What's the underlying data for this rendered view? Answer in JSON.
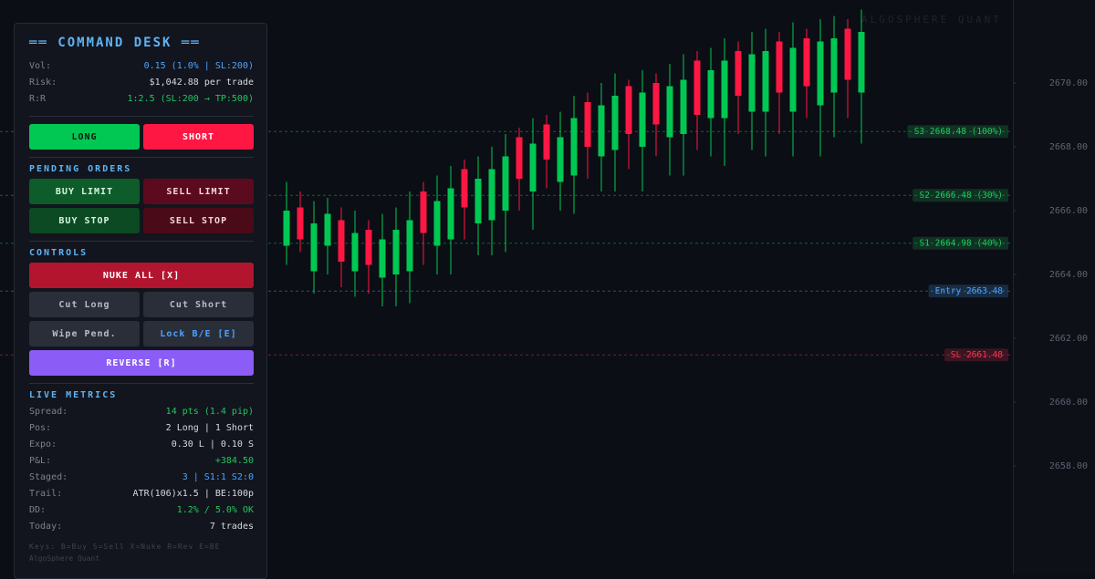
{
  "panel": {
    "title": "══ COMMAND DESK ══",
    "summary": [
      {
        "label": "Vol:",
        "value": "0.15 (1.0% | SL:200)"
      },
      {
        "label": "Risk:",
        "value": "$1,042.88 per trade"
      },
      {
        "label": "R:R",
        "value": "1:2.5 (SL:200 → TP:500)"
      }
    ],
    "trade_buttons": [
      "LONG",
      "SHORT"
    ],
    "pending": {
      "title": "PENDING ORDERS",
      "buttons": [
        "BUY LIMIT",
        "SELL LIMIT",
        "BUY STOP",
        "SELL STOP"
      ]
    },
    "controls": {
      "title": "CONTROLS",
      "buttons": [
        "NUKE ALL [X]",
        "Cut Long",
        "Cut Short",
        "Wipe Pend.",
        "Lock B/E [E]",
        "REVERSE [R]"
      ]
    },
    "metrics": {
      "title": "LIVE METRICS",
      "rows": [
        {
          "label": "Spread:",
          "value": "14 pts (1.4 pip)"
        },
        {
          "label": "Pos:",
          "value": "2 Long | 1 Short"
        },
        {
          "label": "Expo:",
          "value": "0.30 L | 0.10 S"
        },
        {
          "label": "P&L:",
          "value": "+384.50"
        },
        {
          "label": "Staged:",
          "value": "3 | S1:1 S2:0"
        },
        {
          "label": "Trail:",
          "value": "ATR(106)x1.5 | BE:100p"
        },
        {
          "label": "DD:",
          "value": "1.2% / 5.0% OK"
        },
        {
          "label": "Today:",
          "value": "7 trades"
        }
      ]
    },
    "keys": "Keys: B=Buy S=Sell X=Nuke R=Rev E=BE",
    "brand": "AlgoSphere Quant"
  },
  "chart_data": {
    "type": "candlestick",
    "watermark": "ALGOSPHERE QUANT",
    "up_color": "#00c853",
    "down_color": "#ff1744",
    "open": [
      2664.9,
      2666.1,
      2664.1,
      2664.9,
      2665.7,
      2664.1,
      2665.4,
      2663.9,
      2664.0,
      2664.1,
      2666.6,
      2664.9,
      2665.1,
      2667.3,
      2665.6,
      2665.7,
      2666.0,
      2668.3,
      2666.6,
      2668.7,
      2666.9,
      2667.1,
      2669.4,
      2667.7,
      2667.9,
      2669.9,
      2668.0,
      2670.0,
      2668.3,
      2668.4,
      2670.7,
      2668.9,
      2668.9,
      2671.0,
      2669.1,
      2669.1,
      2671.3,
      2669.1,
      2671.4,
      2669.3,
      2669.7,
      2671.7,
      2669.7
    ],
    "high": [
      2666.9,
      2666.6,
      2666.3,
      2666.4,
      2666.1,
      2666.0,
      2665.7,
      2665.9,
      2666.1,
      2666.6,
      2666.9,
      2667.1,
      2667.4,
      2667.6,
      2667.7,
      2668.0,
      2668.4,
      2668.6,
      2668.9,
      2669.0,
      2669.1,
      2669.6,
      2669.7,
      2670.0,
      2670.3,
      2670.1,
      2670.4,
      2670.3,
      2670.6,
      2670.9,
      2671.0,
      2671.1,
      2671.4,
      2671.3,
      2671.6,
      2671.7,
      2671.6,
      2671.9,
      2671.7,
      2672.0,
      2672.1,
      2672.0,
      2672.3
    ],
    "low": [
      2664.3,
      2664.7,
      2663.4,
      2664.0,
      2663.6,
      2663.3,
      2663.4,
      2663.0,
      2663.0,
      2663.1,
      2664.3,
      2664.0,
      2664.0,
      2665.1,
      2664.6,
      2664.6,
      2664.7,
      2666.0,
      2665.4,
      2666.7,
      2666.0,
      2665.9,
      2667.0,
      2666.6,
      2666.6,
      2667.3,
      2666.6,
      2667.7,
      2667.1,
      2667.1,
      2667.9,
      2667.7,
      2667.4,
      2668.4,
      2667.9,
      2667.7,
      2668.4,
      2667.7,
      2668.9,
      2667.7,
      2668.3,
      2668.9,
      2668.1
    ],
    "close": [
      2666.0,
      2665.1,
      2665.6,
      2665.9,
      2664.4,
      2665.3,
      2664.3,
      2665.1,
      2665.4,
      2665.7,
      2665.3,
      2666.3,
      2666.7,
      2666.1,
      2667.0,
      2667.3,
      2667.7,
      2667.0,
      2668.1,
      2667.6,
      2668.3,
      2668.9,
      2668.0,
      2669.3,
      2669.6,
      2668.4,
      2669.7,
      2668.7,
      2669.9,
      2670.1,
      2669.0,
      2670.4,
      2670.7,
      2669.6,
      2670.9,
      2671.0,
      2669.7,
      2671.1,
      2669.9,
      2671.3,
      2671.4,
      2670.1,
      2671.6
    ],
    "ylim": [
      2654.6,
      2672.6
    ],
    "yticks": [
      {
        "value": 2658,
        "label": "2658.00"
      },
      {
        "value": 2660,
        "label": "2660.00"
      },
      {
        "value": 2662,
        "label": "2662.00"
      },
      {
        "value": 2664,
        "label": "2664.00"
      },
      {
        "value": 2666,
        "label": "2666.00"
      },
      {
        "value": 2668,
        "label": "2668.00"
      },
      {
        "value": 2670,
        "label": "2670.00"
      }
    ],
    "levels": [
      {
        "label": "S3 2668.48 (100%)",
        "value": 2668.48,
        "color": "#22c55e"
      },
      {
        "label": "S2 2666.48 (30%)",
        "value": 2666.48,
        "color": "#22c55e"
      },
      {
        "label": "S1 2664.98 (40%)",
        "value": 2664.98,
        "color": "#22c55e"
      },
      {
        "label": "Entry 2663.48",
        "value": 2663.48,
        "color": "#4da3ff"
      },
      {
        "label": "SL 2661.48",
        "value": 2661.48,
        "color": "#ff3355"
      }
    ]
  }
}
